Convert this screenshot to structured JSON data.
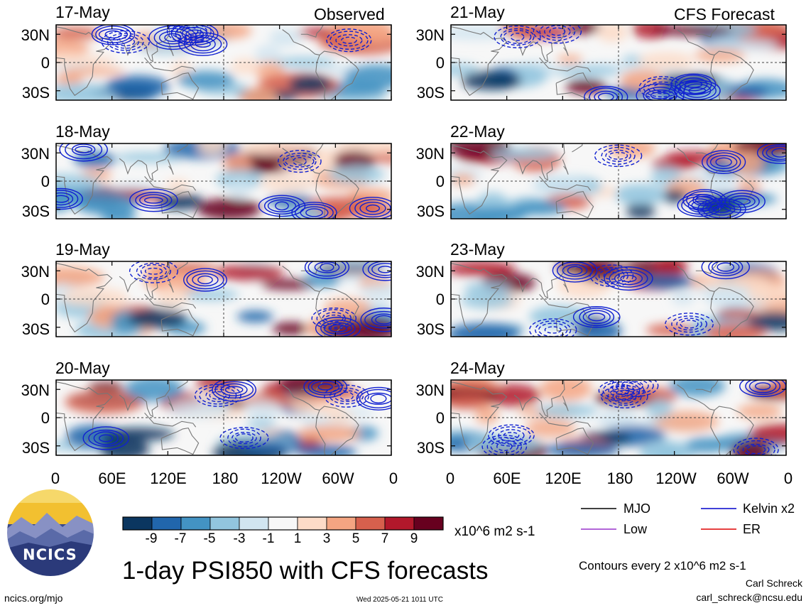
{
  "figure": {
    "title": "1-day PSI850 with CFS forecasts",
    "observed_label": "Observed",
    "forecast_label": "CFS Forecast",
    "observed_dates": [
      "17-May",
      "18-May",
      "19-May",
      "20-May"
    ],
    "forecast_dates": [
      "21-May",
      "22-May",
      "23-May",
      "24-May"
    ],
    "lat_ticks": [
      "30N",
      "0",
      "30S"
    ],
    "lon_ticks": [
      "0",
      "60E",
      "120E",
      "180",
      "120W",
      "60W",
      "0"
    ]
  },
  "colorbar": {
    "ticks": [
      "-9",
      "-7",
      "-5",
      "-3",
      "-1",
      "1",
      "3",
      "5",
      "7",
      "9"
    ],
    "colors": [
      "#0b3660",
      "#2166ac",
      "#4393c3",
      "#92c5de",
      "#d1e5f0",
      "#f7f7f7",
      "#fddbc7",
      "#f4a582",
      "#d6604d",
      "#b2182b",
      "#67001f"
    ],
    "unit": "x10^6 m2 s-1"
  },
  "legend": {
    "items": [
      {
        "label": "MJO",
        "color": "#000000"
      },
      {
        "label": "Kelvin x2",
        "color": "#0000cc"
      },
      {
        "label": "Low",
        "color": "#9932cc"
      },
      {
        "label": "ER",
        "color": "#dd0000"
      }
    ],
    "contour_note": "Contours every 2 x10^6 m2 s-1"
  },
  "footer": {
    "site": "ncics.org/mjo",
    "timestamp": "Wed 2025-05-21 1011 UTC",
    "author": "Carl Schreck",
    "email": "carl_schreck@ncsu.edu"
  },
  "logo": {
    "text": "NCICS",
    "icon": "ncics-logo-icon"
  }
}
